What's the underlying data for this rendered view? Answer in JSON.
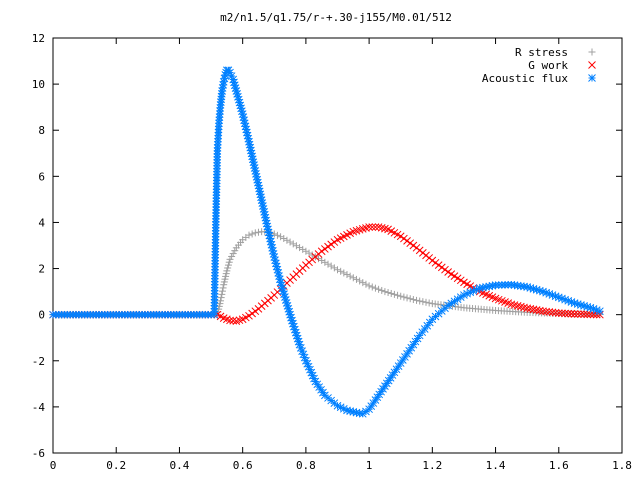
{
  "chart_data": {
    "type": "scatter",
    "title": "m2/n1.5/q1.75/r-+.30-j155/M0.01/512",
    "xlabel": "",
    "ylabel": "",
    "xlim": [
      0,
      1.8
    ],
    "ylim": [
      -6,
      12
    ],
    "xticks": [
      0,
      0.2,
      0.4,
      0.6,
      0.8,
      1,
      1.2,
      1.4,
      1.6,
      1.8
    ],
    "yticks": [
      -6,
      -4,
      -2,
      0,
      2,
      4,
      6,
      8,
      10,
      12
    ],
    "xtick_labels": [
      "0",
      "0.2",
      "0.4",
      "0.6",
      "0.8",
      "1",
      "1.2",
      "1.4",
      "1.6",
      "1.8"
    ],
    "ytick_labels": [
      "-6",
      "-4",
      "-2",
      "0",
      "2",
      "4",
      "6",
      "8",
      "10",
      "12"
    ],
    "grid": false,
    "legend_position": "top-right",
    "series": [
      {
        "name": "R stress",
        "marker": "plus",
        "color": "#a0a0a0",
        "points": [
          [
            0.0,
            0
          ],
          [
            0.1,
            0
          ],
          [
            0.2,
            0
          ],
          [
            0.3,
            0
          ],
          [
            0.4,
            0
          ],
          [
            0.5,
            0
          ],
          [
            0.52,
            0
          ],
          [
            0.53,
            0.6
          ],
          [
            0.54,
            1.3
          ],
          [
            0.55,
            1.9
          ],
          [
            0.56,
            2.4
          ],
          [
            0.58,
            2.9
          ],
          [
            0.6,
            3.25
          ],
          [
            0.62,
            3.45
          ],
          [
            0.64,
            3.55
          ],
          [
            0.66,
            3.6
          ],
          [
            0.68,
            3.58
          ],
          [
            0.7,
            3.5
          ],
          [
            0.72,
            3.38
          ],
          [
            0.75,
            3.15
          ],
          [
            0.8,
            2.75
          ],
          [
            0.85,
            2.35
          ],
          [
            0.9,
            1.95
          ],
          [
            0.95,
            1.6
          ],
          [
            1.0,
            1.25
          ],
          [
            1.05,
            1.0
          ],
          [
            1.1,
            0.8
          ],
          [
            1.15,
            0.62
          ],
          [
            1.2,
            0.48
          ],
          [
            1.3,
            0.3
          ],
          [
            1.4,
            0.18
          ],
          [
            1.5,
            0.1
          ],
          [
            1.6,
            0.05
          ],
          [
            1.7,
            0.02
          ],
          [
            1.73,
            0.01
          ]
        ]
      },
      {
        "name": "G work",
        "marker": "cross",
        "color": "#ff0000",
        "points": [
          [
            0.0,
            0
          ],
          [
            0.1,
            0
          ],
          [
            0.2,
            0
          ],
          [
            0.3,
            0
          ],
          [
            0.4,
            0
          ],
          [
            0.5,
            0
          ],
          [
            0.52,
            0
          ],
          [
            0.54,
            -0.15
          ],
          [
            0.56,
            -0.25
          ],
          [
            0.58,
            -0.28
          ],
          [
            0.6,
            -0.2
          ],
          [
            0.62,
            -0.05
          ],
          [
            0.65,
            0.25
          ],
          [
            0.7,
            0.85
          ],
          [
            0.75,
            1.5
          ],
          [
            0.8,
            2.15
          ],
          [
            0.85,
            2.75
          ],
          [
            0.9,
            3.25
          ],
          [
            0.95,
            3.6
          ],
          [
            1.0,
            3.8
          ],
          [
            1.03,
            3.8
          ],
          [
            1.06,
            3.7
          ],
          [
            1.1,
            3.4
          ],
          [
            1.15,
            2.9
          ],
          [
            1.2,
            2.35
          ],
          [
            1.25,
            1.85
          ],
          [
            1.3,
            1.4
          ],
          [
            1.35,
            1.0
          ],
          [
            1.4,
            0.7
          ],
          [
            1.45,
            0.45
          ],
          [
            1.5,
            0.28
          ],
          [
            1.55,
            0.15
          ],
          [
            1.6,
            0.07
          ],
          [
            1.65,
            0.03
          ],
          [
            1.7,
            0.01
          ],
          [
            1.73,
            0.0
          ]
        ]
      },
      {
        "name": "Acoustic flux",
        "marker": "star",
        "color": "#0080ff",
        "points": [
          [
            0.0,
            0
          ],
          [
            0.1,
            0
          ],
          [
            0.2,
            0
          ],
          [
            0.3,
            0
          ],
          [
            0.4,
            0
          ],
          [
            0.5,
            0
          ],
          [
            0.51,
            0
          ],
          [
            0.515,
            3.9
          ],
          [
            0.52,
            7.1
          ],
          [
            0.525,
            8.3
          ],
          [
            0.53,
            9.1
          ],
          [
            0.535,
            9.7
          ],
          [
            0.54,
            10.1
          ],
          [
            0.545,
            10.4
          ],
          [
            0.55,
            10.6
          ],
          [
            0.555,
            10.6
          ],
          [
            0.56,
            10.5
          ],
          [
            0.57,
            10.2
          ],
          [
            0.58,
            9.7
          ],
          [
            0.6,
            8.7
          ],
          [
            0.62,
            7.5
          ],
          [
            0.65,
            5.6
          ],
          [
            0.68,
            3.7
          ],
          [
            0.7,
            2.5
          ],
          [
            0.72,
            1.4
          ],
          [
            0.75,
            0.0
          ],
          [
            0.78,
            -1.3
          ],
          [
            0.8,
            -2.0
          ],
          [
            0.83,
            -2.9
          ],
          [
            0.86,
            -3.5
          ],
          [
            0.9,
            -3.95
          ],
          [
            0.93,
            -4.15
          ],
          [
            0.96,
            -4.25
          ],
          [
            0.98,
            -4.3
          ],
          [
            1.0,
            -4.1
          ],
          [
            1.02,
            -3.7
          ],
          [
            1.05,
            -3.1
          ],
          [
            1.08,
            -2.5
          ],
          [
            1.12,
            -1.7
          ],
          [
            1.16,
            -0.9
          ],
          [
            1.2,
            -0.2
          ],
          [
            1.25,
            0.4
          ],
          [
            1.3,
            0.85
          ],
          [
            1.35,
            1.15
          ],
          [
            1.4,
            1.28
          ],
          [
            1.45,
            1.3
          ],
          [
            1.5,
            1.2
          ],
          [
            1.55,
            1.0
          ],
          [
            1.6,
            0.75
          ],
          [
            1.65,
            0.5
          ],
          [
            1.7,
            0.3
          ],
          [
            1.73,
            0.15
          ]
        ]
      }
    ]
  }
}
